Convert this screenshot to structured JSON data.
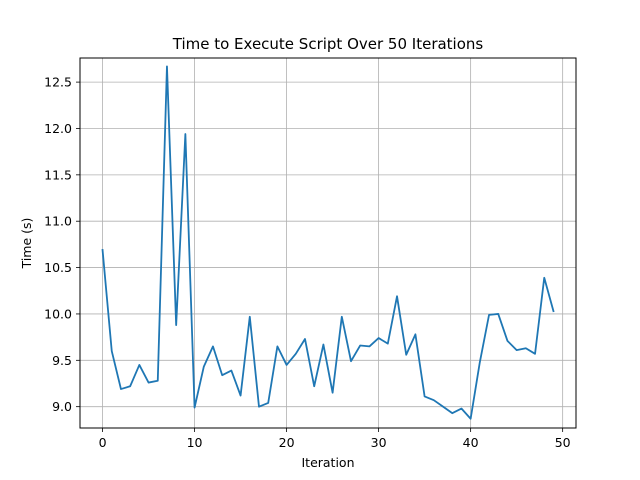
{
  "chart_data": {
    "type": "line",
    "title": "Time to Execute Script Over 50 Iterations",
    "xlabel": "Iteration",
    "ylabel": "Time (s)",
    "xlim": [
      -2.45,
      51.45
    ],
    "ylim": [
      8.77,
      12.76
    ],
    "grid": true,
    "x_ticks": [
      0,
      10,
      20,
      30,
      40,
      50
    ],
    "y_ticks": [
      9.0,
      9.5,
      10.0,
      10.5,
      11.0,
      11.5,
      12.0,
      12.5
    ],
    "y_tick_labels": [
      "9.0",
      "9.5",
      "10.0",
      "10.5",
      "11.0",
      "11.5",
      "12.0",
      "12.5"
    ],
    "series": [
      {
        "color": "#1f77b4",
        "x": [
          0,
          1,
          2,
          3,
          4,
          5,
          6,
          7,
          8,
          9,
          10,
          11,
          12,
          13,
          14,
          15,
          16,
          17,
          18,
          19,
          20,
          21,
          22,
          23,
          24,
          25,
          26,
          27,
          28,
          29,
          30,
          31,
          32,
          33,
          34,
          35,
          36,
          37,
          38,
          39,
          40,
          41,
          42,
          43,
          44,
          45,
          46,
          47,
          48,
          49
        ],
        "values": [
          10.69,
          9.6,
          9.19,
          9.22,
          9.45,
          9.26,
          9.28,
          12.67,
          9.88,
          11.94,
          8.99,
          9.43,
          9.65,
          9.34,
          9.39,
          9.12,
          9.97,
          9.0,
          9.04,
          9.65,
          9.45,
          9.57,
          9.73,
          9.22,
          9.67,
          9.15,
          9.97,
          9.49,
          9.66,
          9.65,
          9.74,
          9.68,
          10.19,
          9.56,
          9.78,
          9.11,
          9.07,
          9.0,
          8.93,
          8.98,
          8.87,
          9.48,
          9.99,
          10.0,
          9.71,
          9.61,
          9.63,
          9.57,
          10.39,
          10.03
        ]
      }
    ]
  }
}
